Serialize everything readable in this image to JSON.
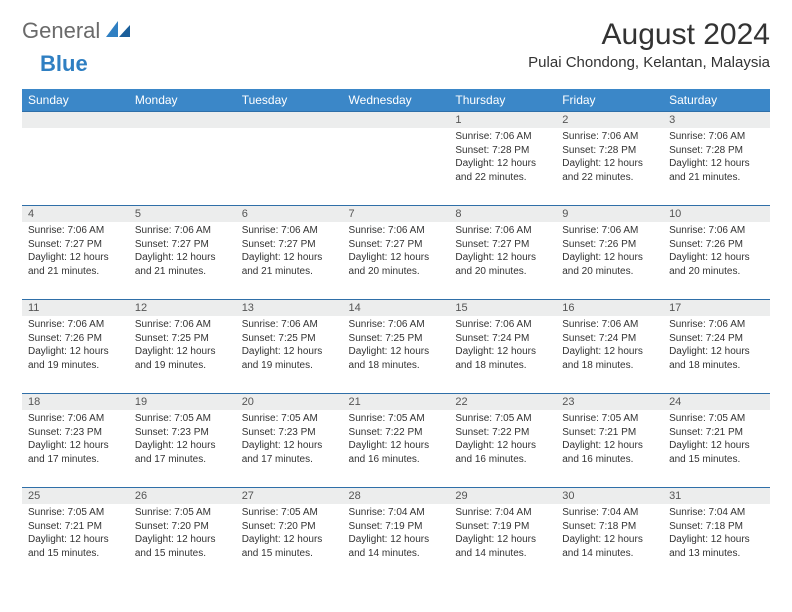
{
  "logo": {
    "part1": "General",
    "part2": "Blue"
  },
  "title": "August 2024",
  "location": "Pulai Chondong, Kelantan, Malaysia",
  "colors": {
    "header_bg": "#3b87c8",
    "header_text": "#ffffff",
    "daynum_bg": "#eceded",
    "row_border": "#2f6fa8",
    "logo_gray": "#6a6a6a",
    "logo_blue": "#2f7fc2"
  },
  "weekdays": [
    "Sunday",
    "Monday",
    "Tuesday",
    "Wednesday",
    "Thursday",
    "Friday",
    "Saturday"
  ],
  "weeks": [
    [
      null,
      null,
      null,
      null,
      {
        "day": "1",
        "sunrise": "Sunrise: 7:06 AM",
        "sunset": "Sunset: 7:28 PM",
        "daylight": "Daylight: 12 hours and 22 minutes."
      },
      {
        "day": "2",
        "sunrise": "Sunrise: 7:06 AM",
        "sunset": "Sunset: 7:28 PM",
        "daylight": "Daylight: 12 hours and 22 minutes."
      },
      {
        "day": "3",
        "sunrise": "Sunrise: 7:06 AM",
        "sunset": "Sunset: 7:28 PM",
        "daylight": "Daylight: 12 hours and 21 minutes."
      }
    ],
    [
      {
        "day": "4",
        "sunrise": "Sunrise: 7:06 AM",
        "sunset": "Sunset: 7:27 PM",
        "daylight": "Daylight: 12 hours and 21 minutes."
      },
      {
        "day": "5",
        "sunrise": "Sunrise: 7:06 AM",
        "sunset": "Sunset: 7:27 PM",
        "daylight": "Daylight: 12 hours and 21 minutes."
      },
      {
        "day": "6",
        "sunrise": "Sunrise: 7:06 AM",
        "sunset": "Sunset: 7:27 PM",
        "daylight": "Daylight: 12 hours and 21 minutes."
      },
      {
        "day": "7",
        "sunrise": "Sunrise: 7:06 AM",
        "sunset": "Sunset: 7:27 PM",
        "daylight": "Daylight: 12 hours and 20 minutes."
      },
      {
        "day": "8",
        "sunrise": "Sunrise: 7:06 AM",
        "sunset": "Sunset: 7:27 PM",
        "daylight": "Daylight: 12 hours and 20 minutes."
      },
      {
        "day": "9",
        "sunrise": "Sunrise: 7:06 AM",
        "sunset": "Sunset: 7:26 PM",
        "daylight": "Daylight: 12 hours and 20 minutes."
      },
      {
        "day": "10",
        "sunrise": "Sunrise: 7:06 AM",
        "sunset": "Sunset: 7:26 PM",
        "daylight": "Daylight: 12 hours and 20 minutes."
      }
    ],
    [
      {
        "day": "11",
        "sunrise": "Sunrise: 7:06 AM",
        "sunset": "Sunset: 7:26 PM",
        "daylight": "Daylight: 12 hours and 19 minutes."
      },
      {
        "day": "12",
        "sunrise": "Sunrise: 7:06 AM",
        "sunset": "Sunset: 7:25 PM",
        "daylight": "Daylight: 12 hours and 19 minutes."
      },
      {
        "day": "13",
        "sunrise": "Sunrise: 7:06 AM",
        "sunset": "Sunset: 7:25 PM",
        "daylight": "Daylight: 12 hours and 19 minutes."
      },
      {
        "day": "14",
        "sunrise": "Sunrise: 7:06 AM",
        "sunset": "Sunset: 7:25 PM",
        "daylight": "Daylight: 12 hours and 18 minutes."
      },
      {
        "day": "15",
        "sunrise": "Sunrise: 7:06 AM",
        "sunset": "Sunset: 7:24 PM",
        "daylight": "Daylight: 12 hours and 18 minutes."
      },
      {
        "day": "16",
        "sunrise": "Sunrise: 7:06 AM",
        "sunset": "Sunset: 7:24 PM",
        "daylight": "Daylight: 12 hours and 18 minutes."
      },
      {
        "day": "17",
        "sunrise": "Sunrise: 7:06 AM",
        "sunset": "Sunset: 7:24 PM",
        "daylight": "Daylight: 12 hours and 18 minutes."
      }
    ],
    [
      {
        "day": "18",
        "sunrise": "Sunrise: 7:06 AM",
        "sunset": "Sunset: 7:23 PM",
        "daylight": "Daylight: 12 hours and 17 minutes."
      },
      {
        "day": "19",
        "sunrise": "Sunrise: 7:05 AM",
        "sunset": "Sunset: 7:23 PM",
        "daylight": "Daylight: 12 hours and 17 minutes."
      },
      {
        "day": "20",
        "sunrise": "Sunrise: 7:05 AM",
        "sunset": "Sunset: 7:23 PM",
        "daylight": "Daylight: 12 hours and 17 minutes."
      },
      {
        "day": "21",
        "sunrise": "Sunrise: 7:05 AM",
        "sunset": "Sunset: 7:22 PM",
        "daylight": "Daylight: 12 hours and 16 minutes."
      },
      {
        "day": "22",
        "sunrise": "Sunrise: 7:05 AM",
        "sunset": "Sunset: 7:22 PM",
        "daylight": "Daylight: 12 hours and 16 minutes."
      },
      {
        "day": "23",
        "sunrise": "Sunrise: 7:05 AM",
        "sunset": "Sunset: 7:21 PM",
        "daylight": "Daylight: 12 hours and 16 minutes."
      },
      {
        "day": "24",
        "sunrise": "Sunrise: 7:05 AM",
        "sunset": "Sunset: 7:21 PM",
        "daylight": "Daylight: 12 hours and 15 minutes."
      }
    ],
    [
      {
        "day": "25",
        "sunrise": "Sunrise: 7:05 AM",
        "sunset": "Sunset: 7:21 PM",
        "daylight": "Daylight: 12 hours and 15 minutes."
      },
      {
        "day": "26",
        "sunrise": "Sunrise: 7:05 AM",
        "sunset": "Sunset: 7:20 PM",
        "daylight": "Daylight: 12 hours and 15 minutes."
      },
      {
        "day": "27",
        "sunrise": "Sunrise: 7:05 AM",
        "sunset": "Sunset: 7:20 PM",
        "daylight": "Daylight: 12 hours and 15 minutes."
      },
      {
        "day": "28",
        "sunrise": "Sunrise: 7:04 AM",
        "sunset": "Sunset: 7:19 PM",
        "daylight": "Daylight: 12 hours and 14 minutes."
      },
      {
        "day": "29",
        "sunrise": "Sunrise: 7:04 AM",
        "sunset": "Sunset: 7:19 PM",
        "daylight": "Daylight: 12 hours and 14 minutes."
      },
      {
        "day": "30",
        "sunrise": "Sunrise: 7:04 AM",
        "sunset": "Sunset: 7:18 PM",
        "daylight": "Daylight: 12 hours and 14 minutes."
      },
      {
        "day": "31",
        "sunrise": "Sunrise: 7:04 AM",
        "sunset": "Sunset: 7:18 PM",
        "daylight": "Daylight: 12 hours and 13 minutes."
      }
    ]
  ]
}
